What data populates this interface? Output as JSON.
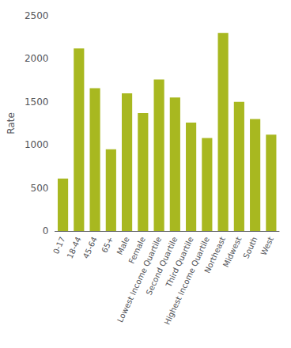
{
  "chart_data": {
    "type": "bar",
    "categories": [
      "0-17",
      "18-44",
      "45-64",
      "65+",
      "Male",
      "Female",
      "Lowest Income Quartile",
      "Second Quartile",
      "Third Quartile",
      "Highest Income Quartile",
      "Northeast",
      "Midwest",
      "South",
      "West"
    ],
    "values": [
      610,
      2120,
      1660,
      950,
      1600,
      1370,
      1760,
      1550,
      1260,
      1080,
      2300,
      1500,
      1300,
      1120
    ],
    "color": "#a8b820",
    "ylabel": "Rate",
    "ylim": [
      0,
      2500
    ],
    "yticks": [
      0,
      500,
      1000,
      1500,
      2000,
      2500
    ],
    "grid": false
  }
}
